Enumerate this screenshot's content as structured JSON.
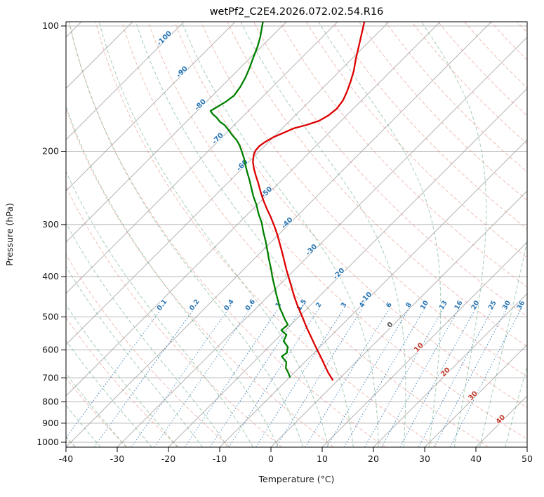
{
  "title": "wetPf2_C2E4.2026.072.02.54.R16",
  "axes": {
    "x_label": "Temperature (°C)",
    "y_label": "Pressure (hPa)",
    "x_ticks": [
      -40,
      -30,
      -20,
      -10,
      0,
      10,
      20,
      30,
      40,
      50
    ],
    "y_ticks": [
      100,
      200,
      300,
      400,
      500,
      600,
      700,
      800,
      900,
      1000
    ],
    "xlim": [
      -40,
      50
    ],
    "ylim": [
      1028,
      98
    ]
  },
  "style": {
    "temperature_color": "#dd0000",
    "dewpoint_color": "#008000",
    "isotherm_color": "#9c9c9c",
    "dry_adiabat_color": "#e0806e",
    "moist_adiabat_color": "#4f9e6d",
    "mixing_ratio_color": "#2b76b3",
    "label_blue": "#2b76b3",
    "label_gray": "#5a5a5a",
    "label_red": "#c03a2b"
  },
  "isotherm_labels": [
    {
      "t": -100,
      "p": 108
    },
    {
      "t": -90,
      "p": 130
    },
    {
      "t": -80,
      "p": 156
    },
    {
      "t": -70,
      "p": 188
    },
    {
      "t": -60,
      "p": 218
    },
    {
      "t": -50,
      "p": 253
    },
    {
      "t": -40,
      "p": 300
    },
    {
      "t": -30,
      "p": 348
    },
    {
      "t": -20,
      "p": 397
    },
    {
      "t": -10,
      "p": 453
    },
    {
      "t": 0,
      "p": 527
    },
    {
      "t": 10,
      "p": 597
    },
    {
      "t": 20,
      "p": 684
    },
    {
      "t": 30,
      "p": 780
    },
    {
      "t": 40,
      "p": 889
    }
  ],
  "mixing_ratio_g_kg": [
    0.1,
    0.2,
    0.4,
    0.6,
    1,
    1.5,
    2,
    3,
    4,
    6,
    8,
    10,
    13,
    16,
    20,
    25,
    30,
    36
  ],
  "chart_data": {
    "type": "line",
    "subtype": "skew-t-log-p",
    "title": "wetPf2_C2E4.2026.072.02.54.R16",
    "xlabel": "Temperature (°C)",
    "ylabel": "Pressure (hPa)",
    "xlim": [
      -40,
      50
    ],
    "ylim": [
      1028,
      98
    ],
    "y_scale": "log",
    "skew_deg": 45,
    "grid": true,
    "legend": "none",
    "series": [
      {
        "name": "temperature",
        "color": "#dd0000",
        "points_p_hPa_T_C": [
          [
            98,
            -64.7
          ],
          [
            109,
            -61.8
          ],
          [
            120,
            -59.2
          ],
          [
            128,
            -57.3
          ],
          [
            136,
            -55.8
          ],
          [
            144,
            -54.5
          ],
          [
            151,
            -53.6
          ],
          [
            158,
            -53.2
          ],
          [
            164,
            -53.5
          ],
          [
            169,
            -54.3
          ],
          [
            173,
            -56.0
          ],
          [
            176,
            -57.7
          ],
          [
            181,
            -59.0
          ],
          [
            185,
            -60.0
          ],
          [
            190,
            -60.7
          ],
          [
            194,
            -61.0
          ],
          [
            199,
            -60.9
          ],
          [
            204,
            -60.4
          ],
          [
            212,
            -59.2
          ],
          [
            220,
            -57.7
          ],
          [
            229,
            -55.9
          ],
          [
            238,
            -54.1
          ],
          [
            250,
            -51.9
          ],
          [
            262,
            -49.7
          ],
          [
            275,
            -47.3
          ],
          [
            288,
            -44.9
          ],
          [
            303,
            -42.4
          ],
          [
            318,
            -40.1
          ],
          [
            334,
            -37.9
          ],
          [
            350,
            -35.8
          ],
          [
            368,
            -33.6
          ],
          [
            386,
            -31.5
          ],
          [
            405,
            -29.3
          ],
          [
            425,
            -27.1
          ],
          [
            447,
            -24.8
          ],
          [
            469,
            -22.5
          ],
          [
            488,
            -20.5
          ],
          [
            508,
            -18.5
          ],
          [
            531,
            -16.3
          ],
          [
            554,
            -14.1
          ],
          [
            578,
            -11.9
          ],
          [
            603,
            -9.7
          ],
          [
            627,
            -7.6
          ],
          [
            652,
            -5.6
          ],
          [
            680,
            -3.4
          ],
          [
            708,
            -1.1
          ]
        ]
      },
      {
        "name": "dewpoint",
        "color": "#008000",
        "points_p_hPa_T_C": [
          [
            98,
            -84.5
          ],
          [
            106,
            -82.2
          ],
          [
            112,
            -80.8
          ],
          [
            119,
            -79.5
          ],
          [
            126,
            -78.2
          ],
          [
            133,
            -77.1
          ],
          [
            140,
            -76.3
          ],
          [
            147,
            -75.8
          ],
          [
            152,
            -76.2
          ],
          [
            156,
            -76.8
          ],
          [
            160,
            -77.4
          ],
          [
            163,
            -76.3
          ],
          [
            166,
            -74.9
          ],
          [
            170,
            -73.4
          ],
          [
            173,
            -71.9
          ],
          [
            178,
            -70.1
          ],
          [
            183,
            -68.4
          ],
          [
            188,
            -66.6
          ],
          [
            194,
            -64.9
          ],
          [
            201,
            -63.2
          ],
          [
            208,
            -61.6
          ],
          [
            216,
            -60.0
          ],
          [
            224,
            -58.4
          ],
          [
            234,
            -56.4
          ],
          [
            245,
            -54.4
          ],
          [
            257,
            -52.3
          ],
          [
            269,
            -50.1
          ],
          [
            283,
            -47.9
          ],
          [
            297,
            -45.6
          ],
          [
            313,
            -43.4
          ],
          [
            329,
            -41.2
          ],
          [
            346,
            -39.1
          ],
          [
            364,
            -37.0
          ],
          [
            383,
            -34.8
          ],
          [
            403,
            -32.7
          ],
          [
            422,
            -30.7
          ],
          [
            441,
            -28.8
          ],
          [
            459,
            -27.0
          ],
          [
            477,
            -25.3
          ],
          [
            491,
            -23.8
          ],
          [
            505,
            -22.4
          ],
          [
            522,
            -20.6
          ],
          [
            538,
            -20.8
          ],
          [
            552,
            -18.9
          ],
          [
            572,
            -18.2
          ],
          [
            590,
            -16.3
          ],
          [
            610,
            -15.3
          ],
          [
            622,
            -15.6
          ],
          [
            642,
            -13.6
          ],
          [
            664,
            -12.5
          ],
          [
            680,
            -11.2
          ],
          [
            697,
            -10.0
          ]
        ]
      }
    ]
  }
}
